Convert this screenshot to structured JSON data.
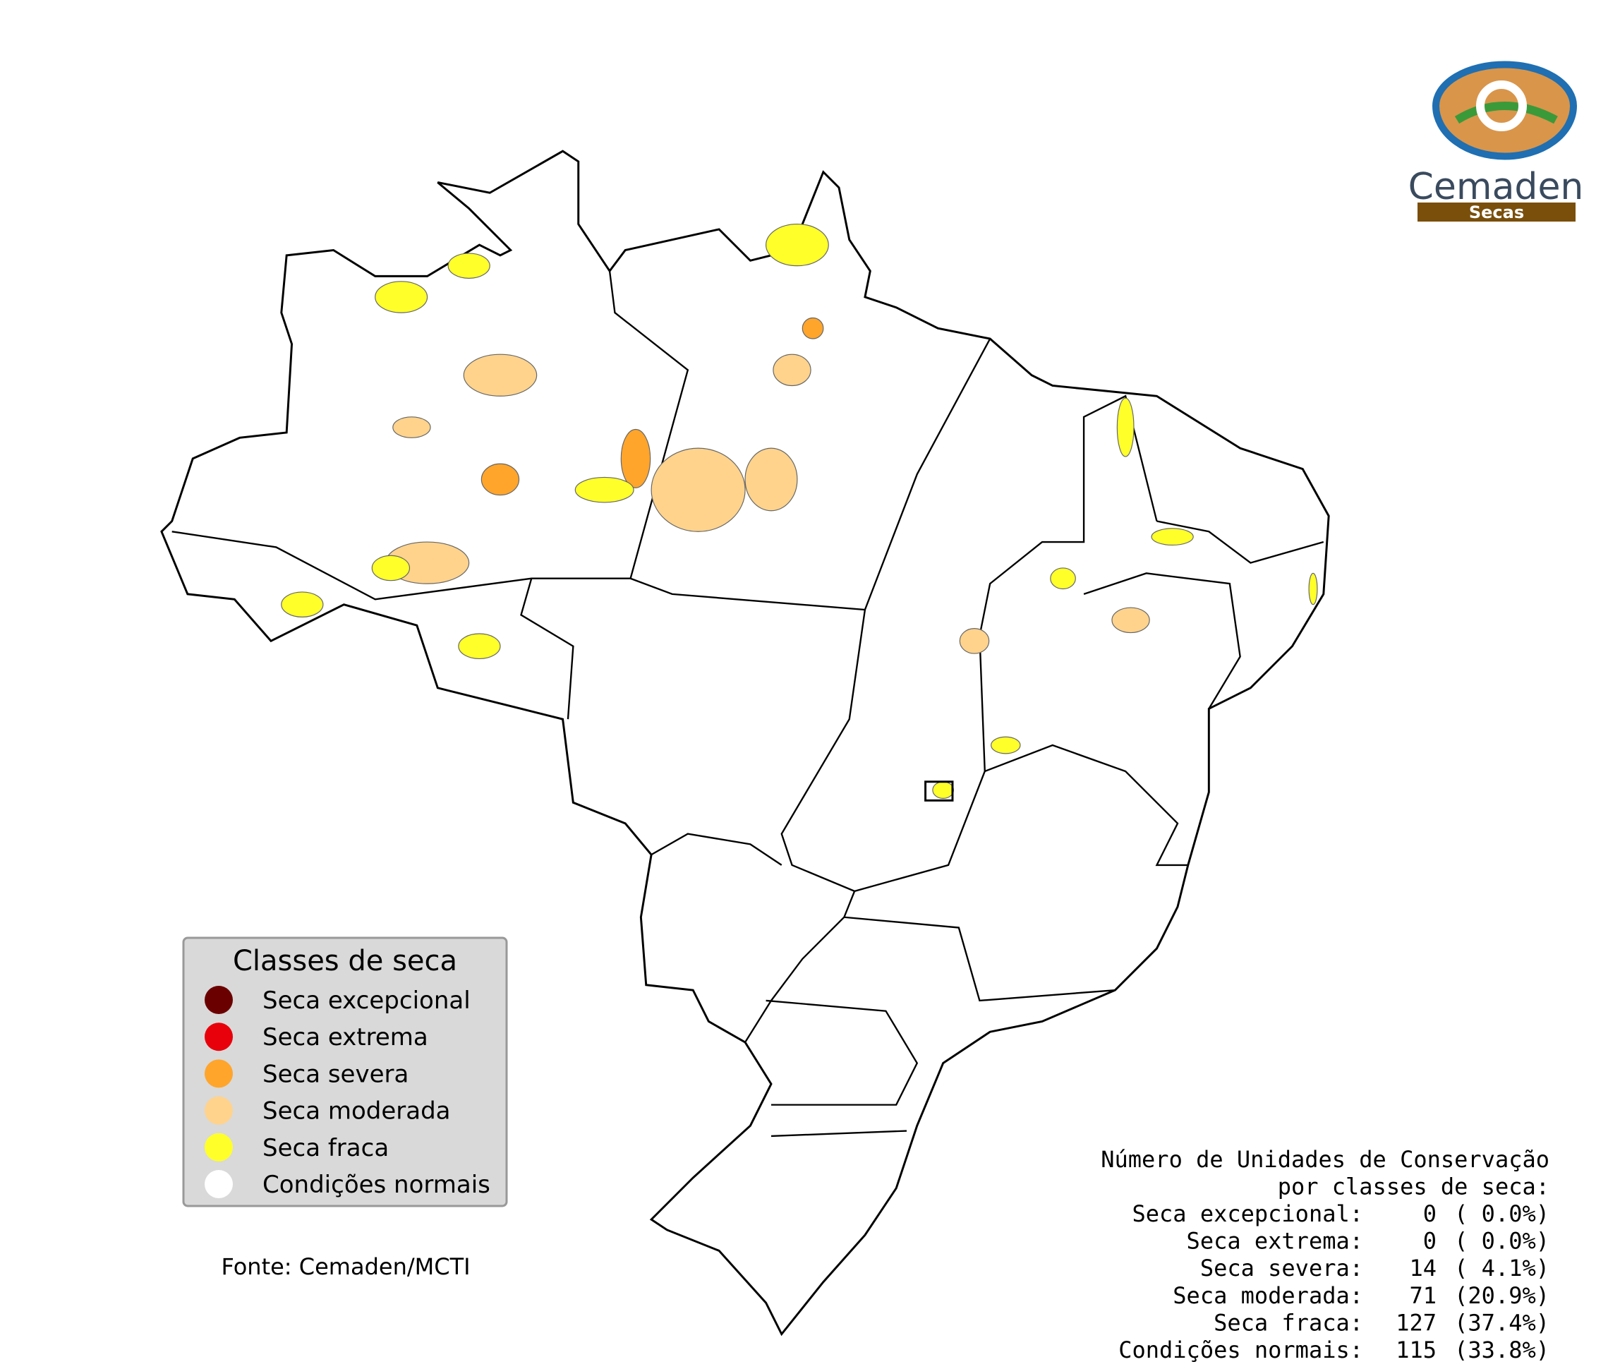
{
  "logo": {
    "name": "Cemaden",
    "subtitle": "Secas"
  },
  "legend": {
    "title": "Classes de seca",
    "items": [
      {
        "label": "Seca excepcional",
        "color": "#6b0000"
      },
      {
        "label": "Seca extrema",
        "color": "#e8000b"
      },
      {
        "label": "Seca severa",
        "color": "#ffa52c"
      },
      {
        "label": "Seca moderada",
        "color": "#ffd38c"
      },
      {
        "label": "Seca fraca",
        "color": "#ffff2a"
      },
      {
        "label": "Condições normais",
        "color": "#ffffff"
      }
    ]
  },
  "source": "Fonte: Cemaden/MCTI",
  "stats": {
    "title_lines": [
      "Número de Unidades de Conservação",
      "por classes de seca:"
    ],
    "rows": [
      {
        "label": "Seca excepcional:",
        "count": 0,
        "percent": "( 0.0%)"
      },
      {
        "label": "Seca extrema:",
        "count": 0,
        "percent": "( 0.0%)"
      },
      {
        "label": "Seca severa:",
        "count": 14,
        "percent": "( 4.1%)"
      },
      {
        "label": "Seca moderada:",
        "count": 71,
        "percent": "(20.9%)"
      },
      {
        "label": "Seca fraca:",
        "count": 127,
        "percent": "(37.4%)"
      },
      {
        "label": "Condições normais:",
        "count": 115,
        "percent": "(33.8%)"
      }
    ]
  }
}
